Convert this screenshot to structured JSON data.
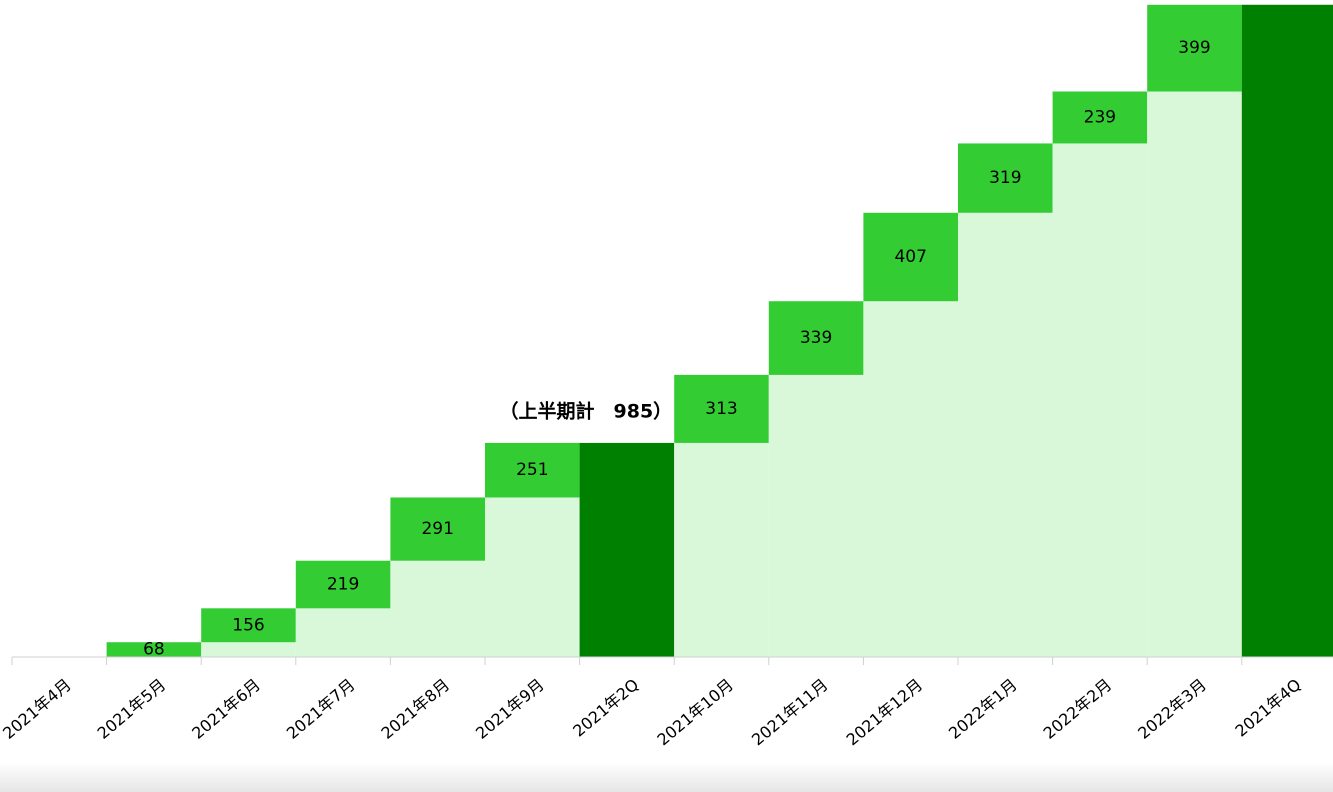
{
  "chart_data": {
    "type": "waterfall",
    "annotation": "（上半期計　985）",
    "categories": [
      "2021年4月",
      "2021年5月",
      "2021年6月",
      "2021年7月",
      "2021年8月",
      "2021年9月",
      "2021年2Q",
      "2021年10月",
      "2021年11月",
      "2021年12月",
      "2022年1月",
      "2022年2月",
      "2022年3月",
      "2021年4Q"
    ],
    "values": [
      null,
      68,
      156,
      219,
      291,
      251,
      985,
      313,
      339,
      407,
      319,
      239,
      399,
      3001
    ],
    "colors": [
      "#33cc33",
      "#33cc33",
      "#33cc33",
      "#33cc33",
      "#33cc33",
      "#33cc33",
      "#008000",
      "#33cc33",
      "#33cc33",
      "#33cc33",
      "#33cc33",
      "#33cc33",
      "#33cc33",
      "#008000"
    ],
    "total_color": "#008000",
    "base_color": "#d9f7d9",
    "ylim": [
      0,
      3023
    ]
  }
}
